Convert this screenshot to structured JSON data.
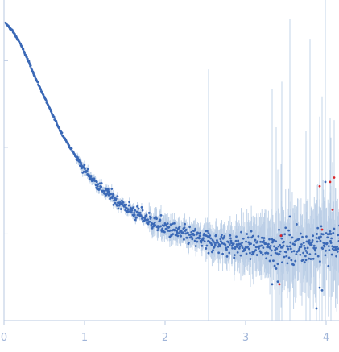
{
  "chart_data": {
    "type": "scatter",
    "title": "",
    "xlabel": "",
    "ylabel": "",
    "x_ticks": [
      "0",
      "1",
      "2",
      "3",
      "4"
    ],
    "xlim": [
      0,
      4.17
    ],
    "ylim": [
      0,
      3.7
    ],
    "log_y": false,
    "grid": false,
    "series_color": "#3a68b6",
    "highlight_color": "#d9262b",
    "errorbar_color": "#b9cde6",
    "curve": [
      [
        0.02,
        3.43
      ],
      [
        0.1,
        3.35
      ],
      [
        0.2,
        3.2
      ],
      [
        0.3,
        3.0
      ],
      [
        0.4,
        2.78
      ],
      [
        0.5,
        2.58
      ],
      [
        0.6,
        2.38
      ],
      [
        0.7,
        2.19
      ],
      [
        0.8,
        2.03
      ],
      [
        0.9,
        1.88
      ],
      [
        1.0,
        1.74
      ],
      [
        1.2,
        1.53
      ],
      [
        1.4,
        1.38
      ],
      [
        1.6,
        1.26
      ],
      [
        1.8,
        1.16
      ],
      [
        2.0,
        1.07
      ],
      [
        2.2,
        1.0
      ],
      [
        2.4,
        0.95
      ],
      [
        2.6,
        0.91
      ],
      [
        2.8,
        0.88
      ],
      [
        3.0,
        0.86
      ],
      [
        3.2,
        0.85
      ],
      [
        3.4,
        0.85
      ],
      [
        3.6,
        0.86
      ],
      [
        3.8,
        0.87
      ],
      [
        4.0,
        0.88
      ],
      [
        4.17,
        0.89
      ]
    ],
    "outliers": [
      [
        2.54,
        0.78
      ],
      [
        3.4,
        0.45
      ],
      [
        3.45,
        0.98
      ],
      [
        3.75,
        0.7
      ],
      [
        3.8,
        0.9
      ],
      [
        3.88,
        0.14
      ],
      [
        3.92,
        0.38
      ],
      [
        3.95,
        0.35
      ],
      [
        3.99,
        1.6
      ],
      [
        4.06,
        1.0
      ],
      [
        3.38,
        0.6
      ],
      [
        3.55,
        1.2
      ],
      [
        3.33,
        0.42
      ]
    ],
    "highlighted": [
      [
        3.42,
        0.42
      ],
      [
        3.44,
        0.98
      ],
      [
        3.92,
        1.55
      ],
      [
        3.95,
        1.05
      ],
      [
        4.05,
        1.6
      ],
      [
        4.08,
        1.28
      ],
      [
        4.1,
        1.65
      ]
    ]
  }
}
